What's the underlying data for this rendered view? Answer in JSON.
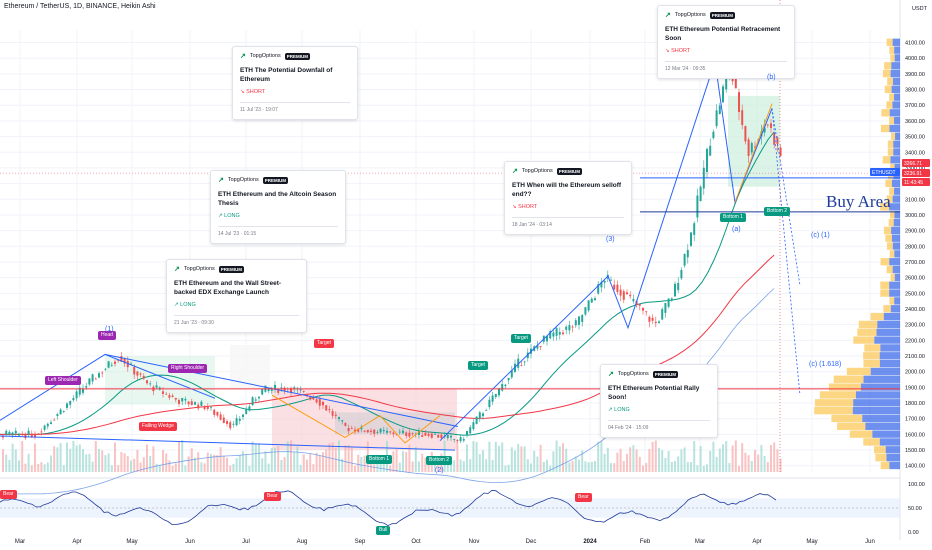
{
  "title": "Ethereum / TetherUS, 1D, BINANCE, Heikin Ashi",
  "colors": {
    "up": "#26a69a",
    "down": "#ef5350",
    "blue": "#2962ff",
    "navy": "#1e3a9a",
    "green_ma": "#089981",
    "red_ma": "#f23645",
    "purple": "#9c27b0",
    "orange": "#ff9800",
    "pink_zone": "#f7c7cc",
    "green_zone": "#cdeedd",
    "grey_zone": "#c9cbd1"
  },
  "chart_data": [
    {
      "type": "candlestick",
      "title": "Ethereum / TetherUS, 1D, BINANCE, Heikin Ashi",
      "y_axis_label": "USDT",
      "y_ticks": [
        1400,
        1500,
        1600,
        1700,
        1800,
        1900,
        2000,
        2100,
        2200,
        2300,
        2400,
        2500,
        2600,
        2700,
        2800,
        2900,
        3000,
        3100,
        3200,
        3300,
        3400,
        3500,
        3600,
        3700,
        3800,
        3900,
        4000,
        4100
      ],
      "x_ticks": [
        "Mar",
        "Apr",
        "May",
        "Jun",
        "Jul",
        "Aug",
        "Sep",
        "Oct",
        "Nov",
        "Dec",
        "2024",
        "Feb",
        "Mar",
        "Apr",
        "May",
        "Jun"
      ],
      "y_range": [
        1360,
        4180
      ],
      "price_labels": [
        {
          "text": "ETHUSDT",
          "color": "#2962ff"
        },
        {
          "text": "3266.71",
          "color": "#f23645"
        },
        {
          "text": "3236.91",
          "color": "#f23645"
        },
        {
          "text": "11:43:45",
          "color": "#f23645"
        }
      ],
      "price_path": [
        {
          "month": "Mar 2023",
          "value": 1600
        },
        {
          "month": "Mar 2023",
          "value": 1770
        },
        {
          "month": "Apr 2023",
          "value": 1950
        },
        {
          "month": "Apr 2023",
          "value": 2100
        },
        {
          "month": "May 2023",
          "value": 1920
        },
        {
          "month": "May 2023",
          "value": 1820
        },
        {
          "month": "Jun 2023",
          "value": 1780
        },
        {
          "month": "Jun 2023",
          "value": 1650
        },
        {
          "month": "Jul 2023",
          "value": 1880
        },
        {
          "month": "Jul 2023",
          "value": 1900
        },
        {
          "month": "Aug 2023",
          "value": 1820
        },
        {
          "month": "Aug 2023",
          "value": 1640
        },
        {
          "month": "Sep 2023",
          "value": 1610
        },
        {
          "month": "Oct 2023",
          "value": 1600
        },
        {
          "month": "Oct 2023",
          "value": 1560
        },
        {
          "month": "Nov 2023",
          "value": 1800
        },
        {
          "month": "Nov 2023",
          "value": 2050
        },
        {
          "month": "Dec 2023",
          "value": 2220
        },
        {
          "month": "Dec 2023",
          "value": 2300
        },
        {
          "month": "Jan 2024",
          "value": 2600
        },
        {
          "month": "Jan 2024",
          "value": 2450
        },
        {
          "month": "Feb 2024",
          "value": 2300
        },
        {
          "month": "Feb 2024",
          "value": 2500
        },
        {
          "month": "Feb 2024",
          "value": 2900
        },
        {
          "month": "Mar 2024",
          "value": 3500
        },
        {
          "month": "Mar 2024",
          "value": 3950
        },
        {
          "month": "Mar 2024",
          "value": 3400
        },
        {
          "month": "Apr 2024",
          "value": 3600
        },
        {
          "month": "Apr 2024",
          "value": 3300
        },
        {
          "month": "Apr 2024",
          "value": 3236.91
        }
      ],
      "horizontal_lines": [
        {
          "value": 3236.91,
          "color": "#2962ff"
        },
        {
          "value": 3020,
          "color": "#1e3a9a",
          "label": "Buy Area"
        },
        {
          "value": 1890,
          "color": "#f23645"
        }
      ],
      "pattern_labels": [
        {
          "text": "Left Shoulder",
          "color": "#9c27b0"
        },
        {
          "text": "Head",
          "color": "#9c27b0"
        },
        {
          "text": "Right Shoulder",
          "color": "#9c27b0"
        },
        {
          "text": "(1)",
          "color": "#2962ff"
        },
        {
          "text": "Falling Wedge",
          "color": "#f23645"
        },
        {
          "text": "Target",
          "color": "#f23645"
        },
        {
          "text": "Target",
          "color": "#089981"
        },
        {
          "text": "Target",
          "color": "#089981"
        },
        {
          "text": "Bottom 1",
          "color": "#089981"
        },
        {
          "text": "Bottom 2",
          "color": "#089981"
        },
        {
          "text": "(2)",
          "color": "#2962ff"
        },
        {
          "text": "(3)",
          "color": "#2962ff"
        },
        {
          "text": "(a)",
          "color": "#2962ff"
        },
        {
          "text": "(b)",
          "color": "#2962ff"
        },
        {
          "text": "Bottom 1",
          "color": "#089981"
        },
        {
          "text": "Bottom 2",
          "color": "#089981"
        },
        {
          "text": "(c) (1)",
          "color": "#2962ff"
        },
        {
          "text": "(c) (1.618)",
          "color": "#2962ff"
        },
        {
          "text": "Buy Area",
          "color": "#1e3a9a"
        }
      ]
    },
    {
      "type": "line",
      "title": "",
      "y_ticks": [
        0,
        50,
        100
      ],
      "y_range": [
        0,
        100
      ],
      "labels": [
        {
          "text": "Bear",
          "color": "#f23645"
        },
        {
          "text": "Bear",
          "color": "#f23645"
        },
        {
          "text": "Bull",
          "color": "#089981"
        },
        {
          "text": "Bear",
          "color": "#f23645"
        }
      ]
    }
  ],
  "idea_cards": [
    {
      "author": "TopgOptions",
      "badge": "PREMIUM",
      "title": "ETH The Potential Downfall of Ethereum",
      "direction": "SHORT",
      "date": "11 Jul '23 · 19:07"
    },
    {
      "author": "TopgOptions",
      "badge": "PREMIUM",
      "title": "ETH Ethereum and the Altcoin Season Thesis",
      "direction": "LONG",
      "date": "14 Jul '23 · 01:15"
    },
    {
      "author": "TopgOptions",
      "badge": "PREMIUM",
      "title": "ETH Ethereum and the Wall Street-backed EDX Exchange Launch",
      "direction": "LONG",
      "date": "21 Jun '23 · 09:30"
    },
    {
      "author": "TopgOptions",
      "badge": "PREMIUM",
      "title": "ETH When will the Ethereum selloff end??",
      "direction": "SHORT",
      "date": "18 Jan '24 · 03:14"
    },
    {
      "author": "TopgOptions",
      "badge": "PREMIUM",
      "title": "ETH Ethereum Potential Retracement Soon",
      "direction": "SHORT",
      "date": "12 Mar '24 · 09:35"
    },
    {
      "author": "TopgOptions",
      "badge": "PREMIUM",
      "title": "ETH Ethereum Potential Rally Soon!",
      "direction": "LONG",
      "date": "04 Feb '24 · 15:09"
    }
  ]
}
